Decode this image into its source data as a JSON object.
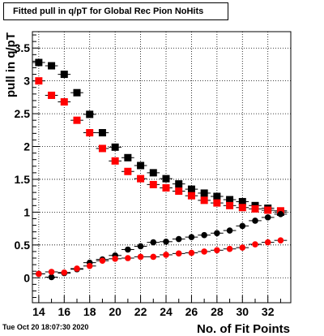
{
  "title": "Fitted pull in q/pT for Global Rec Pion NoHits",
  "datestamp": "Tue Oct 20 18:07:30 2020",
  "chart_data": {
    "type": "scatter",
    "title": "Fitted pull in q/pT for Global Rec Pion NoHits",
    "xlabel": "No. of Fit Points",
    "ylabel": "pull in q/pT",
    "xlim": [
      13.5,
      33.8
    ],
    "ylim": [
      -0.38,
      3.75
    ],
    "xticks": [
      14,
      16,
      18,
      20,
      22,
      24,
      26,
      28,
      30,
      32
    ],
    "yticks": [
      0,
      0.5,
      1,
      1.5,
      2,
      2.5,
      3,
      3.5
    ],
    "xtick_labels": [
      "14",
      "16",
      "18",
      "20",
      "22",
      "24",
      "26",
      "28",
      "30",
      "32"
    ],
    "ytick_labels": [
      "0",
      "0.5",
      "1",
      "1.5",
      "2",
      "2.5",
      "3",
      "3.5"
    ],
    "grid": true,
    "series": [
      {
        "marker": "square",
        "color": "#000000",
        "x": [
          14,
          15,
          16,
          17,
          18,
          19,
          20,
          21,
          22,
          23,
          24,
          25,
          26,
          27,
          28,
          29,
          30,
          31,
          32,
          33
        ],
        "y": [
          3.28,
          3.23,
          3.1,
          2.82,
          2.49,
          2.21,
          1.99,
          1.83,
          1.71,
          1.6,
          1.51,
          1.43,
          1.35,
          1.29,
          1.24,
          1.19,
          1.16,
          1.1,
          1.06,
          1.0
        ]
      },
      {
        "marker": "square",
        "color": "#ff0000",
        "x": [
          14,
          15,
          16,
          17,
          18,
          19,
          20,
          21,
          22,
          23,
          24,
          25,
          26,
          27,
          28,
          29,
          30,
          31,
          32,
          33
        ],
        "y": [
          3.0,
          2.78,
          2.68,
          2.4,
          2.21,
          1.97,
          1.78,
          1.62,
          1.51,
          1.42,
          1.37,
          1.32,
          1.25,
          1.18,
          1.14,
          1.1,
          1.07,
          1.05,
          1.03,
          1.02
        ]
      },
      {
        "marker": "circle",
        "color": "#000000",
        "x": [
          14,
          15,
          16,
          17,
          18,
          19,
          20,
          21,
          22,
          23,
          24,
          25,
          26,
          27,
          28,
          29,
          30,
          31,
          32,
          33
        ],
        "y": [
          0.06,
          0.01,
          0.07,
          0.13,
          0.23,
          0.28,
          0.34,
          0.43,
          0.48,
          0.54,
          0.55,
          0.59,
          0.62,
          0.65,
          0.68,
          0.72,
          0.79,
          0.87,
          0.92,
          0.97
        ]
      },
      {
        "marker": "circle",
        "color": "#ff0000",
        "x": [
          14,
          15,
          16,
          17,
          18,
          19,
          20,
          21,
          22,
          23,
          24,
          25,
          26,
          27,
          28,
          29,
          30,
          31,
          32,
          33
        ],
        "y": [
          0.06,
          0.09,
          0.08,
          0.14,
          0.18,
          0.26,
          0.29,
          0.3,
          0.32,
          0.32,
          0.35,
          0.37,
          0.38,
          0.4,
          0.42,
          0.44,
          0.46,
          0.51,
          0.54,
          0.57
        ]
      }
    ]
  }
}
